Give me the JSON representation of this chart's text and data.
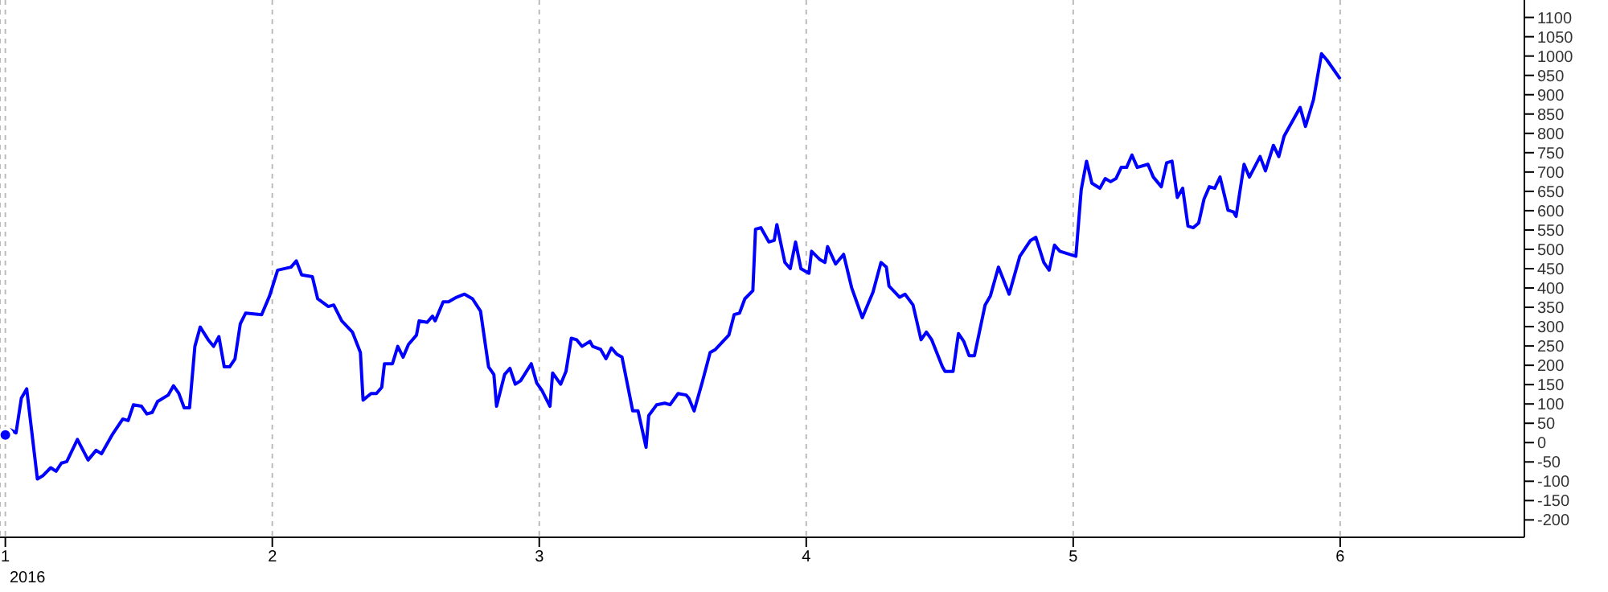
{
  "chart_data": {
    "type": "line",
    "xlabel": "2016",
    "x": [
      1.0,
      1.02,
      1.04,
      1.06,
      1.08,
      1.12,
      1.14,
      1.17,
      1.19,
      1.21,
      1.23,
      1.27,
      1.31,
      1.34,
      1.36,
      1.4,
      1.44,
      1.46,
      1.48,
      1.51,
      1.53,
      1.55,
      1.57,
      1.61,
      1.63,
      1.65,
      1.67,
      1.69,
      1.71,
      1.73,
      1.76,
      1.78,
      1.8,
      1.82,
      1.84,
      1.86,
      1.88,
      1.9,
      1.96,
      1.99,
      2.02,
      2.07,
      2.09,
      2.11,
      2.15,
      2.17,
      2.21,
      2.23,
      2.26,
      2.3,
      2.33,
      2.34,
      2.37,
      2.39,
      2.41,
      2.42,
      2.45,
      2.47,
      2.49,
      2.51,
      2.54,
      2.55,
      2.58,
      2.6,
      2.61,
      2.64,
      2.66,
      2.69,
      2.72,
      2.75,
      2.78,
      2.81,
      2.83,
      2.84,
      2.87,
      2.89,
      2.91,
      2.93,
      2.97,
      2.99,
      3.01,
      3.04,
      3.05,
      3.08,
      3.1,
      3.12,
      3.14,
      3.16,
      3.19,
      3.2,
      3.23,
      3.25,
      3.27,
      3.29,
      3.31,
      3.35,
      3.37,
      3.4,
      3.41,
      3.44,
      3.47,
      3.49,
      3.52,
      3.55,
      3.56,
      3.58,
      3.61,
      3.64,
      3.66,
      3.71,
      3.73,
      3.75,
      3.77,
      3.8,
      3.81,
      3.83,
      3.86,
      3.88,
      3.89,
      3.92,
      3.94,
      3.96,
      3.98,
      4.01,
      4.02,
      4.05,
      4.07,
      4.08,
      4.11,
      4.14,
      4.17,
      4.21,
      4.25,
      4.28,
      4.3,
      4.31,
      4.35,
      4.37,
      4.4,
      4.43,
      4.45,
      4.47,
      4.51,
      4.52,
      4.55,
      4.57,
      4.59,
      4.61,
      4.63,
      4.67,
      4.69,
      4.72,
      4.76,
      4.8,
      4.84,
      4.86,
      4.89,
      4.91,
      4.93,
      4.95,
      5.01,
      5.03,
      5.05,
      5.07,
      5.1,
      5.12,
      5.14,
      5.16,
      5.18,
      5.2,
      5.22,
      5.24,
      5.28,
      5.3,
      5.33,
      5.35,
      5.37,
      5.39,
      5.41,
      5.43,
      5.45,
      5.47,
      5.49,
      5.51,
      5.53,
      5.55,
      5.58,
      5.6,
      5.61,
      5.64,
      5.66,
      5.7,
      5.72,
      5.75,
      5.77,
      5.79,
      5.85,
      5.87,
      5.9,
      5.93,
      5.95,
      6.0
    ],
    "series": [
      {
        "color": "#0000ff",
        "values": [
          20,
          33,
          25,
          115,
          139,
          -94,
          -86,
          -65,
          -74,
          -53,
          -49,
          8,
          -45,
          -20,
          -29,
          20,
          61,
          57,
          98,
          94,
          74,
          78,
          106,
          123,
          147,
          127,
          90,
          90,
          249,
          299,
          266,
          249,
          274,
          196,
          196,
          216,
          307,
          335,
          331,
          380,
          446,
          454,
          470,
          434,
          429,
          372,
          352,
          356,
          315,
          286,
          233,
          110,
          127,
          127,
          143,
          204,
          204,
          249,
          221,
          254,
          278,
          315,
          311,
          327,
          315,
          364,
          364,
          376,
          384,
          372,
          340,
          196,
          176,
          94,
          176,
          192,
          151,
          160,
          204,
          155,
          135,
          94,
          180,
          151,
          184,
          270,
          266,
          249,
          262,
          249,
          241,
          217,
          245,
          229,
          221,
          82,
          82,
          -12,
          70,
          98,
          102,
          98,
          127,
          123,
          115,
          82,
          155,
          233,
          241,
          278,
          331,
          335,
          372,
          393,
          552,
          556,
          519,
          523,
          564,
          466,
          450,
          519,
          450,
          438,
          495,
          474,
          466,
          507,
          462,
          487,
          401,
          323,
          389,
          466,
          454,
          405,
          376,
          384,
          356,
          266,
          286,
          266,
          196,
          184,
          184,
          282,
          262,
          225,
          225,
          356,
          380,
          454,
          384,
          482,
          523,
          531,
          466,
          446,
          511,
          495,
          482,
          654,
          728,
          671,
          658,
          683,
          675,
          683,
          712,
          712,
          744,
          712,
          720,
          687,
          662,
          724,
          728,
          634,
          658,
          560,
          556,
          568,
          630,
          662,
          658,
          687,
          601,
          597,
          585,
          720,
          687,
          740,
          703,
          769,
          740,
          793,
          867,
          818,
          887,
          1006,
          990,
          941
        ]
      }
    ],
    "xlim": [
      0.98,
      6.69
    ],
    "xticks": [
      1,
      2,
      3,
      4,
      5,
      6
    ],
    "ylim": [
      -245,
      1145
    ],
    "yticks": [
      -200,
      -150,
      -100,
      -50,
      0,
      50,
      100,
      150,
      200,
      250,
      300,
      350,
      400,
      450,
      500,
      550,
      600,
      650,
      700,
      750,
      800,
      850,
      900,
      950,
      1000,
      1050,
      1100
    ],
    "grid": "x",
    "legend": false,
    "marker": "none",
    "line_style": "solid"
  }
}
